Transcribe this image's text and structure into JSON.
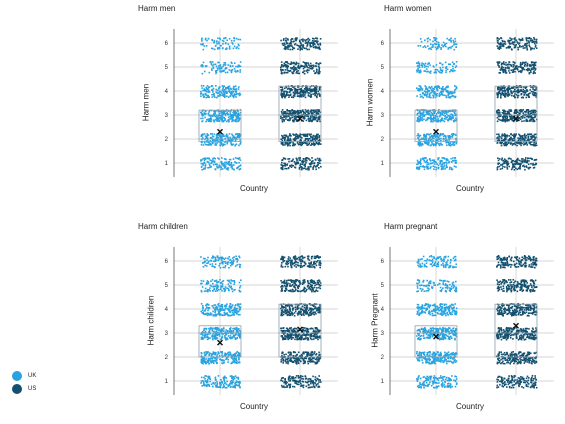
{
  "chart_data": [
    {
      "type": "scatter",
      "title": "Harm men",
      "ylabel": "Harm men",
      "xlabel": "Country",
      "ylim": [
        0.5,
        6.5
      ],
      "yticks": [
        1,
        2,
        3,
        4,
        5,
        6
      ],
      "categories": [
        "UK",
        "US"
      ],
      "series": [
        {
          "name": "UK",
          "level_density": [
            0.55,
            0.75,
            0.85,
            0.65,
            0.35,
            0.3
          ],
          "box": {
            "q1": 1.9,
            "q3": 3.2,
            "median": 2.0,
            "mean": 2.3
          }
        },
        {
          "name": "US",
          "level_density": [
            0.55,
            0.75,
            0.9,
            0.8,
            0.6,
            0.55
          ],
          "box": {
            "q1": 1.9,
            "q3": 4.2,
            "median": 3.0,
            "mean": 2.85
          }
        }
      ]
    },
    {
      "type": "scatter",
      "title": "Harm women",
      "ylabel": "Harm women",
      "xlabel": "Country",
      "ylim": [
        0.5,
        6.5
      ],
      "yticks": [
        1,
        2,
        3,
        4,
        5,
        6
      ],
      "categories": [
        "UK",
        "US"
      ],
      "series": [
        {
          "name": "UK",
          "level_density": [
            0.55,
            0.75,
            0.85,
            0.65,
            0.35,
            0.3
          ],
          "box": {
            "q1": 1.9,
            "q3": 3.2,
            "median": 2.0,
            "mean": 2.3
          }
        },
        {
          "name": "US",
          "level_density": [
            0.55,
            0.75,
            0.9,
            0.8,
            0.6,
            0.55
          ],
          "box": {
            "q1": 1.9,
            "q3": 4.2,
            "median": 3.0,
            "mean": 2.85
          }
        }
      ]
    },
    {
      "type": "scatter",
      "title": "Harm children",
      "ylabel": "Harm children",
      "xlabel": "Country",
      "ylim": [
        0.5,
        6.5
      ],
      "yticks": [
        1,
        2,
        3,
        4,
        5,
        6
      ],
      "categories": [
        "UK",
        "US"
      ],
      "series": [
        {
          "name": "UK",
          "level_density": [
            0.55,
            0.8,
            0.85,
            0.7,
            0.4,
            0.4
          ],
          "box": {
            "q1": 2.0,
            "q3": 3.3,
            "median": 3.0,
            "mean": 2.6
          }
        },
        {
          "name": "US",
          "level_density": [
            0.55,
            0.75,
            0.9,
            0.8,
            0.65,
            0.6
          ],
          "box": {
            "q1": 2.0,
            "q3": 4.2,
            "median": 3.0,
            "mean": 3.15
          }
        }
      ]
    },
    {
      "type": "scatter",
      "title": "Harm pregnant",
      "ylabel": "Harm Pregnant",
      "xlabel": "Country",
      "ylim": [
        0.5,
        6.5
      ],
      "yticks": [
        1,
        2,
        3,
        4,
        5,
        6
      ],
      "categories": [
        "UK",
        "US"
      ],
      "series": [
        {
          "name": "UK",
          "level_density": [
            0.55,
            0.8,
            0.85,
            0.7,
            0.4,
            0.4
          ],
          "box": {
            "q1": 2.0,
            "q3": 3.3,
            "median": 3.0,
            "mean": 2.85
          }
        },
        {
          "name": "US",
          "level_density": [
            0.55,
            0.75,
            0.9,
            0.8,
            0.65,
            0.6
          ],
          "box": {
            "q1": 2.0,
            "q3": 4.2,
            "median": 3.0,
            "mean": 3.3
          }
        }
      ]
    }
  ],
  "legend": {
    "items": [
      {
        "label": "UK",
        "color": "#29a3e0"
      },
      {
        "label": "US",
        "color": "#13506f"
      }
    ]
  },
  "colors": {
    "uk": "#29a3e0",
    "us": "#13506f",
    "grid": "#c9c9c9",
    "axis": "#555555",
    "box": "#8fa0ab",
    "mean": "#111111"
  }
}
